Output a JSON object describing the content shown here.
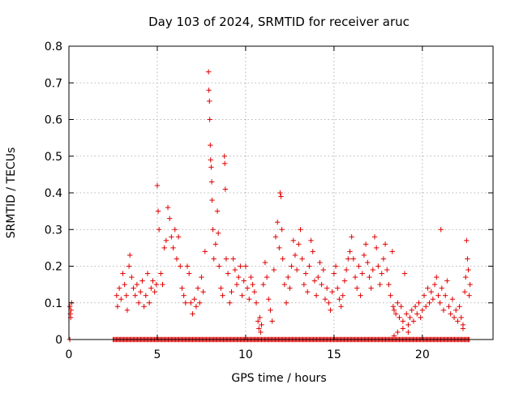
{
  "chart_data": {
    "type": "scatter",
    "title": "Day 103 of 2024, SRMTID for receiver aruc",
    "xlabel": "GPS time / hours",
    "ylabel": "SRMTID / TECUs",
    "xlim": [
      0,
      24
    ],
    "ylim": [
      0,
      0.8
    ],
    "xticks": [
      0,
      5,
      10,
      15,
      20
    ],
    "xtick_labels": [
      "0",
      "5",
      "10",
      "15",
      "20"
    ],
    "yticks": [
      0,
      0.1,
      0.2,
      0.3,
      0.4,
      0.5,
      0.6,
      0.7,
      0.8
    ],
    "ytick_labels": [
      "0",
      "0.1",
      "0.2",
      "0.3",
      "0.4",
      "0.5",
      "0.6",
      "0.7",
      "0.8"
    ],
    "grid": true,
    "marker": "plus",
    "color": "#e00000",
    "series": [
      {
        "name": "SRMTID",
        "points": [
          [
            0.05,
            0.09
          ],
          [
            0.08,
            0.07
          ],
          [
            0.1,
            0.06
          ],
          [
            0.12,
            0.08
          ],
          [
            0.15,
            0.1
          ],
          [
            0.05,
            0.0
          ],
          [
            2.7,
            0.12
          ],
          [
            2.75,
            0.09
          ],
          [
            2.85,
            0.14
          ],
          [
            2.95,
            0.11
          ],
          [
            3.05,
            0.18
          ],
          [
            3.15,
            0.15
          ],
          [
            3.25,
            0.12
          ],
          [
            3.3,
            0.08
          ],
          [
            3.4,
            0.2
          ],
          [
            3.45,
            0.23
          ],
          [
            3.55,
            0.17
          ],
          [
            3.65,
            0.14
          ],
          [
            3.75,
            0.12
          ],
          [
            3.85,
            0.15
          ],
          [
            3.95,
            0.1
          ],
          [
            4.05,
            0.13
          ],
          [
            4.15,
            0.16
          ],
          [
            4.25,
            0.09
          ],
          [
            4.35,
            0.12
          ],
          [
            4.45,
            0.18
          ],
          [
            4.55,
            0.1
          ],
          [
            4.65,
            0.14
          ],
          [
            4.75,
            0.16
          ],
          [
            4.85,
            0.13
          ],
          [
            4.95,
            0.15
          ],
          [
            5.0,
            0.42
          ],
          [
            5.05,
            0.35
          ],
          [
            5.1,
            0.3
          ],
          [
            5.2,
            0.18
          ],
          [
            5.3,
            0.15
          ],
          [
            5.4,
            0.25
          ],
          [
            5.5,
            0.27
          ],
          [
            5.6,
            0.36
          ],
          [
            5.7,
            0.33
          ],
          [
            5.8,
            0.28
          ],
          [
            5.9,
            0.25
          ],
          [
            6.0,
            0.3
          ],
          [
            6.1,
            0.22
          ],
          [
            6.2,
            0.28
          ],
          [
            6.3,
            0.2
          ],
          [
            6.4,
            0.14
          ],
          [
            6.5,
            0.12
          ],
          [
            6.6,
            0.1
          ],
          [
            6.7,
            0.2
          ],
          [
            6.8,
            0.18
          ],
          [
            6.9,
            0.1
          ],
          [
            7.0,
            0.07
          ],
          [
            7.1,
            0.11
          ],
          [
            7.2,
            0.09
          ],
          [
            7.3,
            0.14
          ],
          [
            7.4,
            0.1
          ],
          [
            7.5,
            0.17
          ],
          [
            7.6,
            0.13
          ],
          [
            7.7,
            0.24
          ],
          [
            7.9,
            0.73
          ],
          [
            7.92,
            0.68
          ],
          [
            7.95,
            0.65
          ],
          [
            7.97,
            0.6
          ],
          [
            8.0,
            0.53
          ],
          [
            8.02,
            0.49
          ],
          [
            8.05,
            0.47
          ],
          [
            8.08,
            0.43
          ],
          [
            8.1,
            0.38
          ],
          [
            8.15,
            0.3
          ],
          [
            8.2,
            0.22
          ],
          [
            8.3,
            0.26
          ],
          [
            8.4,
            0.35
          ],
          [
            8.45,
            0.29
          ],
          [
            8.5,
            0.2
          ],
          [
            8.6,
            0.14
          ],
          [
            8.7,
            0.12
          ],
          [
            8.8,
            0.5
          ],
          [
            8.82,
            0.48
          ],
          [
            8.85,
            0.41
          ],
          [
            8.9,
            0.22
          ],
          [
            9.0,
            0.18
          ],
          [
            9.1,
            0.1
          ],
          [
            9.2,
            0.13
          ],
          [
            9.3,
            0.22
          ],
          [
            9.4,
            0.19
          ],
          [
            9.5,
            0.15
          ],
          [
            9.6,
            0.17
          ],
          [
            9.7,
            0.2
          ],
          [
            9.8,
            0.12
          ],
          [
            9.9,
            0.16
          ],
          [
            10.0,
            0.2
          ],
          [
            10.1,
            0.14
          ],
          [
            10.2,
            0.11
          ],
          [
            10.3,
            0.17
          ],
          [
            10.4,
            0.15
          ],
          [
            10.5,
            0.13
          ],
          [
            10.6,
            0.1
          ],
          [
            10.7,
            0.05
          ],
          [
            10.75,
            0.03
          ],
          [
            10.8,
            0.06
          ],
          [
            10.85,
            0.02
          ],
          [
            10.9,
            0.04
          ],
          [
            11.0,
            0.15
          ],
          [
            11.1,
            0.21
          ],
          [
            11.2,
            0.17
          ],
          [
            11.3,
            0.11
          ],
          [
            11.4,
            0.08
          ],
          [
            11.5,
            0.05
          ],
          [
            11.6,
            0.19
          ],
          [
            11.7,
            0.28
          ],
          [
            11.8,
            0.32
          ],
          [
            11.9,
            0.25
          ],
          [
            11.95,
            0.4
          ],
          [
            12.0,
            0.39
          ],
          [
            12.05,
            0.3
          ],
          [
            12.1,
            0.22
          ],
          [
            12.2,
            0.15
          ],
          [
            12.3,
            0.1
          ],
          [
            12.4,
            0.17
          ],
          [
            12.5,
            0.14
          ],
          [
            12.6,
            0.2
          ],
          [
            12.7,
            0.27
          ],
          [
            12.8,
            0.23
          ],
          [
            12.9,
            0.19
          ],
          [
            13.0,
            0.26
          ],
          [
            13.1,
            0.3
          ],
          [
            13.2,
            0.22
          ],
          [
            13.3,
            0.15
          ],
          [
            13.4,
            0.18
          ],
          [
            13.5,
            0.13
          ],
          [
            13.6,
            0.2
          ],
          [
            13.7,
            0.27
          ],
          [
            13.8,
            0.24
          ],
          [
            13.9,
            0.16
          ],
          [
            14.0,
            0.12
          ],
          [
            14.1,
            0.17
          ],
          [
            14.2,
            0.21
          ],
          [
            14.3,
            0.15
          ],
          [
            14.4,
            0.19
          ],
          [
            14.5,
            0.11
          ],
          [
            14.6,
            0.14
          ],
          [
            14.7,
            0.1
          ],
          [
            14.8,
            0.08
          ],
          [
            14.9,
            0.13
          ],
          [
            15.0,
            0.18
          ],
          [
            15.1,
            0.2
          ],
          [
            15.2,
            0.14
          ],
          [
            15.3,
            0.11
          ],
          [
            15.4,
            0.09
          ],
          [
            15.5,
            0.12
          ],
          [
            15.6,
            0.16
          ],
          [
            15.7,
            0.19
          ],
          [
            15.8,
            0.22
          ],
          [
            15.9,
            0.24
          ],
          [
            16.0,
            0.28
          ],
          [
            16.1,
            0.22
          ],
          [
            16.2,
            0.17
          ],
          [
            16.3,
            0.14
          ],
          [
            16.4,
            0.2
          ],
          [
            16.5,
            0.12
          ],
          [
            16.6,
            0.18
          ],
          [
            16.7,
            0.23
          ],
          [
            16.8,
            0.26
          ],
          [
            16.9,
            0.21
          ],
          [
            17.0,
            0.17
          ],
          [
            17.1,
            0.14
          ],
          [
            17.2,
            0.19
          ],
          [
            17.3,
            0.28
          ],
          [
            17.4,
            0.25
          ],
          [
            17.5,
            0.2
          ],
          [
            17.6,
            0.15
          ],
          [
            17.7,
            0.18
          ],
          [
            17.8,
            0.22
          ],
          [
            17.9,
            0.26
          ],
          [
            18.0,
            0.19
          ],
          [
            18.1,
            0.15
          ],
          [
            18.2,
            0.12
          ],
          [
            18.3,
            0.24
          ],
          [
            18.35,
            0.09
          ],
          [
            18.4,
            0.08
          ],
          [
            18.5,
            0.07
          ],
          [
            18.6,
            0.1
          ],
          [
            18.7,
            0.06
          ],
          [
            18.8,
            0.09
          ],
          [
            18.9,
            0.05
          ],
          [
            19.0,
            0.18
          ],
          [
            19.1,
            0.07
          ],
          [
            19.2,
            0.04
          ],
          [
            19.3,
            0.06
          ],
          [
            19.4,
            0.08
          ],
          [
            19.5,
            0.05
          ],
          [
            19.6,
            0.09
          ],
          [
            19.7,
            0.07
          ],
          [
            19.8,
            0.1
          ],
          [
            19.9,
            0.06
          ],
          [
            20.0,
            0.08
          ],
          [
            20.1,
            0.12
          ],
          [
            20.2,
            0.09
          ],
          [
            20.3,
            0.14
          ],
          [
            20.4,
            0.1
          ],
          [
            20.5,
            0.13
          ],
          [
            20.6,
            0.11
          ],
          [
            20.7,
            0.15
          ],
          [
            20.8,
            0.17
          ],
          [
            20.9,
            0.12
          ],
          [
            21.0,
            0.1
          ],
          [
            21.05,
            0.3
          ],
          [
            21.1,
            0.14
          ],
          [
            21.2,
            0.08
          ],
          [
            21.3,
            0.12
          ],
          [
            21.4,
            0.16
          ],
          [
            21.5,
            0.09
          ],
          [
            21.6,
            0.07
          ],
          [
            21.7,
            0.11
          ],
          [
            21.8,
            0.06
          ],
          [
            21.9,
            0.08
          ],
          [
            22.0,
            0.05
          ],
          [
            22.1,
            0.09
          ],
          [
            22.2,
            0.06
          ],
          [
            22.3,
            0.04
          ],
          [
            22.4,
            0.13
          ],
          [
            22.45,
            0.17
          ],
          [
            22.5,
            0.27
          ],
          [
            22.55,
            0.22
          ],
          [
            22.6,
            0.19
          ],
          [
            22.65,
            0.12
          ],
          [
            22.7,
            0.15
          ],
          [
            18.4,
            0.01
          ],
          [
            18.6,
            0.02
          ],
          [
            18.9,
            0.03
          ],
          [
            19.2,
            0.02
          ],
          [
            22.3,
            0.03
          ]
        ]
      }
    ],
    "zero_band": [
      2.5,
      22.7
    ],
    "zero_band_value": 0
  }
}
